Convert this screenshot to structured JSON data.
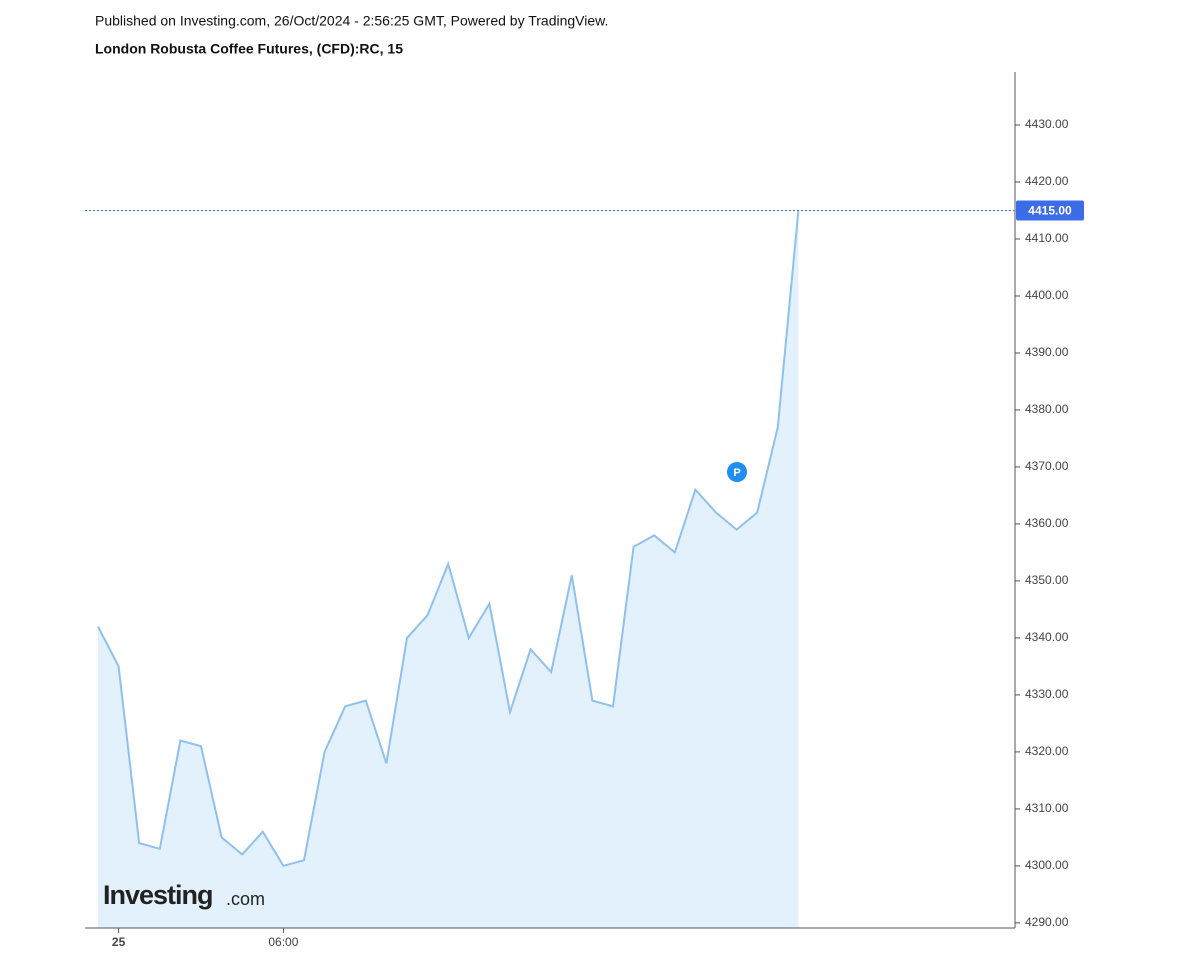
{
  "chart_data": {
    "type": "line",
    "published": "Published on Investing.com, 26/Oct/2024 - 2:56:25 GMT, Powered by TradingView.",
    "title": "London Robusta Coffee Futures, (CFD):RC, 15",
    "logo_name": "Investing",
    "logo_suffix": ".com",
    "marker_label": "P",
    "categories": [
      null,
      "25",
      null,
      null,
      null,
      null,
      null,
      null,
      null,
      "06:00",
      null,
      null,
      null,
      null,
      null,
      null,
      null,
      null,
      null,
      null,
      null,
      null,
      null,
      null,
      null,
      null,
      null,
      null,
      null,
      null,
      null,
      null,
      null,
      null,
      null
    ],
    "values": [
      4342,
      4335,
      4304,
      4303,
      4322,
      4321,
      4305,
      4302,
      4306,
      4300,
      4301,
      4320,
      4328,
      4329,
      4318,
      4340,
      4344,
      4353,
      4340,
      4346,
      4327,
      4338,
      4334,
      4351,
      4329,
      4328,
      4356,
      4358,
      4355,
      4366,
      4362,
      4359,
      4362,
      4377,
      4415
    ],
    "color": "#8fc0ee",
    "fill": "#e2f1fb",
    "price_line": {
      "value": 4415,
      "label": "4415.00"
    },
    "ylim": [
      4289.1,
      4439.3
    ],
    "yticks": [
      {
        "value": 4290,
        "label": "4290.00"
      },
      {
        "value": 4300,
        "label": "4300.00"
      },
      {
        "value": 4310,
        "label": "4310.00"
      },
      {
        "value": 4320,
        "label": "4320.00"
      },
      {
        "value": 4330,
        "label": "4330.00"
      },
      {
        "value": 4340,
        "label": "4340.00"
      },
      {
        "value": 4350,
        "label": "4350.00"
      },
      {
        "value": 4360,
        "label": "4360.00"
      },
      {
        "value": 4370,
        "label": "4370.00"
      },
      {
        "value": 4380,
        "label": "4380.00"
      },
      {
        "value": 4390,
        "label": "4390.00"
      },
      {
        "value": 4400,
        "label": "4400.00"
      },
      {
        "value": 4410,
        "label": "4410.00"
      },
      {
        "value": 4420,
        "label": "4420.00"
      },
      {
        "value": 4430,
        "label": "4430.00"
      }
    ],
    "grid": false
  }
}
